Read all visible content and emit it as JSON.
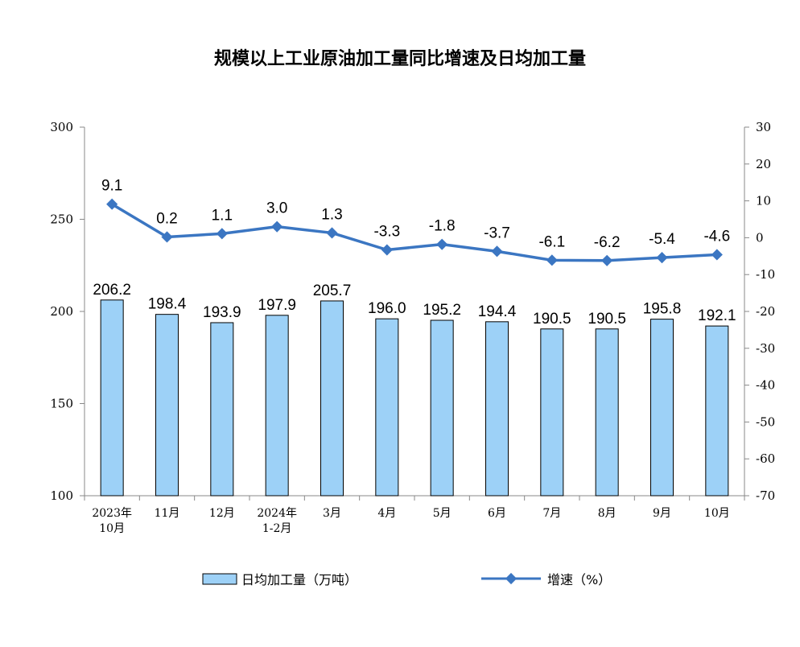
{
  "chart_data": {
    "type": "bar",
    "title": "规模以上工业原油加工量同比增速及日均加工量",
    "categories": [
      [
        "2023年",
        "10月"
      ],
      [
        "11月"
      ],
      [
        "12月"
      ],
      [
        "2024年",
        "1-2月"
      ],
      [
        "3月"
      ],
      [
        "4月"
      ],
      [
        "5月"
      ],
      [
        "6月"
      ],
      [
        "7月"
      ],
      [
        "8月"
      ],
      [
        "9月"
      ],
      [
        "10月"
      ]
    ],
    "series": [
      {
        "name": "日均加工量（万吨）",
        "type": "bar",
        "axis": "left",
        "color": "#9dd1f7",
        "values": [
          206.2,
          198.4,
          193.9,
          197.9,
          205.7,
          196.0,
          195.2,
          194.4,
          190.5,
          190.5,
          195.8,
          192.1
        ],
        "labels": [
          "206.2",
          "198.4",
          "193.9",
          "197.9",
          "205.7",
          "196.0",
          "195.2",
          "194.4",
          "190.5",
          "190.5",
          "195.8",
          "192.1"
        ]
      },
      {
        "name": "增速（%）",
        "type": "line",
        "axis": "right",
        "color": "#3b76c2",
        "values": [
          9.1,
          0.2,
          1.1,
          3.0,
          1.3,
          -3.3,
          -1.8,
          -3.7,
          -6.1,
          -6.2,
          -5.4,
          -4.6
        ],
        "labels": [
          "9.1",
          "0.2",
          "1.1",
          "3.0",
          "1.3",
          "-3.3",
          "-1.8",
          "-3.7",
          "-6.1",
          "-6.2",
          "-5.4",
          "-4.6"
        ]
      }
    ],
    "left_axis": {
      "min": 100,
      "max": 300,
      "step": 50,
      "ticks": [
        "100",
        "150",
        "200",
        "250",
        "300"
      ]
    },
    "right_axis": {
      "min": -70,
      "max": 30,
      "step": 10,
      "ticks": [
        "-70",
        "-60",
        "-50",
        "-40",
        "-30",
        "-20",
        "-10",
        "0",
        "10",
        "20",
        "30"
      ]
    },
    "grid": false,
    "legend_position": "bottom"
  }
}
